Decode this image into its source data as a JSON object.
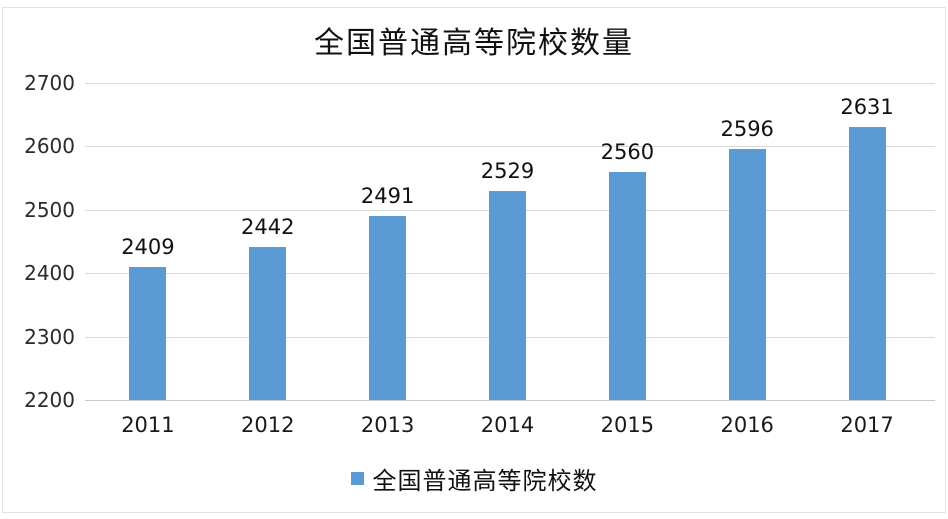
{
  "title": "全国普通高等院校数量",
  "legend": {
    "label": "全国普通高等院校数",
    "marker_color": "#5b9bd5"
  },
  "chart_data": {
    "type": "bar",
    "title": "全国普通高等院校数量",
    "categories": [
      "2011",
      "2012",
      "2013",
      "2014",
      "2015",
      "2016",
      "2017"
    ],
    "values": [
      2409,
      2442,
      2491,
      2529,
      2560,
      2596,
      2631
    ],
    "series_name": "全国普通高等院校数",
    "xlabel": "",
    "ylabel": "",
    "ylim": [
      2200,
      2700
    ],
    "yticks": [
      2200,
      2300,
      2400,
      2500,
      2600,
      2700
    ],
    "grid": true,
    "data_labels": true,
    "legend_position": "bottom",
    "bar_color": "#5b9bd5",
    "gridline_color": "#d9d9d9"
  }
}
